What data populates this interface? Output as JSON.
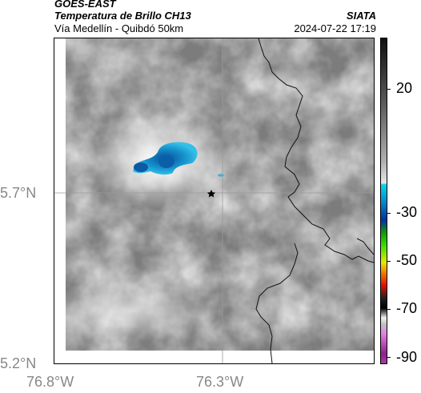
{
  "header": {
    "brand": "GOES-EAST",
    "product": "Temperatura de Brillo CH13",
    "organization": "SIATA",
    "subtitle": "Vía Medellín - Quibdó 50km",
    "datetime": "2024-07-22 17:19"
  },
  "map": {
    "latitude_labels": [
      "5.7°N",
      "5.2°N"
    ],
    "longitude_labels": [
      "76.8°W",
      "76.3°W"
    ],
    "marker": "star",
    "colors": {
      "cold_cloud_cyan": "#1ea8d8",
      "cold_cloud_blue": "#1060a8",
      "clear_gray": "#7a7a7a",
      "border_line": "#111111"
    }
  },
  "colorbar": {
    "tick_labels": [
      "20",
      "-30",
      "-50",
      "-70",
      "-90"
    ],
    "colors": [
      "#101010",
      "#d0d0d0",
      "#00c0e0",
      "#003a9a",
      "#00c000",
      "#f0e000",
      "#e02000",
      "#000000",
      "#c080c0"
    ]
  }
}
